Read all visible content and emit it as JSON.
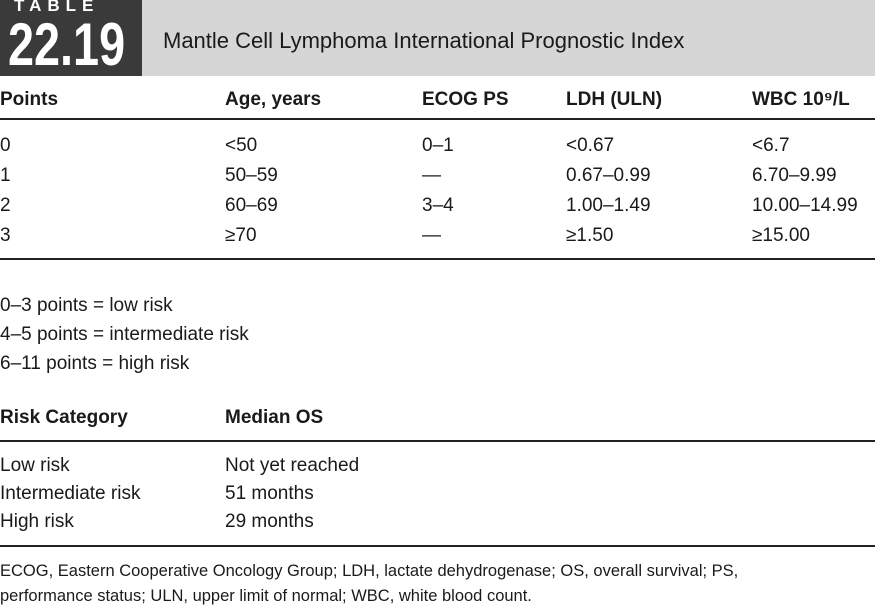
{
  "header": {
    "label": "TABLE",
    "number": "22.19",
    "title": "Mantle Cell Lymphoma International Prognostic Index"
  },
  "table": {
    "columns": [
      "Points",
      "Age, years",
      "ECOG PS",
      "LDH (ULN)",
      "WBC 10⁹/L"
    ],
    "rows": [
      [
        "0",
        "<50",
        "0–1",
        "<0.67",
        "<6.7"
      ],
      [
        "1",
        "50–59",
        "—",
        "0.67–0.99",
        "6.70–9.99"
      ],
      [
        "2",
        "60–69",
        "3–4",
        "1.00–1.49",
        "10.00–14.99"
      ],
      [
        "3",
        "≥70",
        "—",
        "≥1.50",
        "≥15.00"
      ]
    ]
  },
  "scoring": [
    "0–3 points = low risk",
    "4–5 points = intermediate risk",
    "6–11 points = high risk"
  ],
  "risk_table": {
    "columns": [
      "Risk Category",
      "Median OS"
    ],
    "rows": [
      [
        "Low risk",
        "Not yet reached"
      ],
      [
        "Intermediate risk",
        "51 months"
      ],
      [
        "High risk",
        "29 months"
      ]
    ]
  },
  "footnote": [
    "ECOG, Eastern Cooperative Oncology Group; LDH, lactate dehydrogenase; OS, overall survival; PS,",
    "performance status; ULN, upper limit of normal; WBC, white blood count."
  ]
}
